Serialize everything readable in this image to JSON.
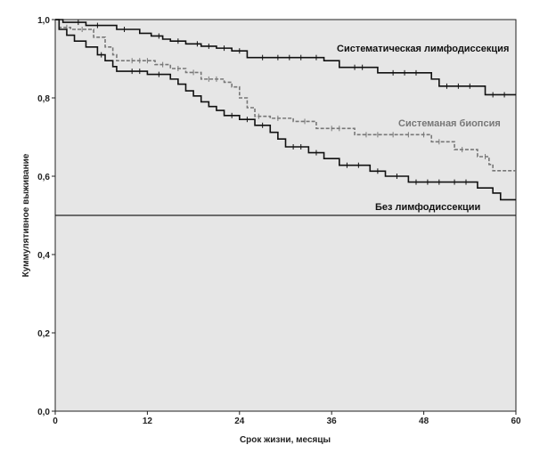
{
  "chart_data": {
    "type": "line",
    "subtype": "kaplan-meier-step",
    "xlabel": "Срок жизни, месяцы",
    "ylabel": "Куммулятивное выживание",
    "xlim": [
      0,
      60
    ],
    "ylim": [
      0,
      1.0
    ],
    "x_ticks": [
      0,
      12,
      24,
      36,
      48,
      60
    ],
    "x_tick_labels": [
      "0",
      "12",
      "24",
      "36",
      "48",
      "60"
    ],
    "y_ticks": [
      0,
      0.2,
      0.4,
      0.6,
      0.8,
      1.0
    ],
    "y_tick_labels": [
      "0,0",
      "0,2",
      "0,4",
      "0,6",
      "0,8",
      "1,0"
    ],
    "grid": false,
    "reference_line": {
      "y": 0.5,
      "color": "#222222"
    },
    "plot_background": "#e6e6e6",
    "series": [
      {
        "name": "Систематическая лимфодиссекция",
        "label_text": "Систематическая лимфодиссекция",
        "color": "#111111",
        "dash": "solid",
        "steps": [
          [
            0,
            1.0
          ],
          [
            1,
            0.993
          ],
          [
            4,
            0.985
          ],
          [
            8,
            0.975
          ],
          [
            11,
            0.965
          ],
          [
            12.5,
            0.958
          ],
          [
            14,
            0.95
          ],
          [
            15,
            0.945
          ],
          [
            17,
            0.938
          ],
          [
            19,
            0.932
          ],
          [
            21,
            0.927
          ],
          [
            23,
            0.92
          ],
          [
            25,
            0.903
          ],
          [
            35,
            0.895
          ],
          [
            37,
            0.878
          ],
          [
            42,
            0.864
          ],
          [
            49,
            0.848
          ],
          [
            50,
            0.83
          ],
          [
            56,
            0.808
          ],
          [
            60,
            0.808
          ]
        ],
        "censored": [
          3,
          5.5,
          9,
          13.5,
          16,
          18.5,
          20,
          22,
          24,
          27,
          29,
          30.5,
          32,
          34,
          39,
          40,
          44,
          45.5,
          47,
          51,
          52.5,
          54,
          57,
          58.5
        ]
      },
      {
        "name": "Системаная биопсия",
        "label_text": "Системаная биопсия",
        "color": "#777777",
        "dash": "dashed",
        "steps": [
          [
            0,
            1.0
          ],
          [
            0.5,
            0.98
          ],
          [
            2,
            0.975
          ],
          [
            5,
            0.955
          ],
          [
            6.5,
            0.93
          ],
          [
            7.5,
            0.91
          ],
          [
            8,
            0.895
          ],
          [
            13,
            0.885
          ],
          [
            15,
            0.875
          ],
          [
            17,
            0.865
          ],
          [
            19,
            0.848
          ],
          [
            22,
            0.84
          ],
          [
            23,
            0.828
          ],
          [
            24,
            0.8
          ],
          [
            25,
            0.775
          ],
          [
            26,
            0.753
          ],
          [
            28,
            0.748
          ],
          [
            31,
            0.74
          ],
          [
            34,
            0.722
          ],
          [
            39,
            0.706
          ],
          [
            49,
            0.688
          ],
          [
            52,
            0.668
          ],
          [
            55,
            0.65
          ],
          [
            56.5,
            0.63
          ],
          [
            57,
            0.614
          ],
          [
            60,
            0.614
          ]
        ],
        "censored": [
          1.5,
          3.5,
          10,
          11,
          12,
          14,
          16,
          18,
          20,
          21,
          26.5,
          29,
          32.5,
          36,
          37,
          40.5,
          42,
          44,
          46,
          48,
          50,
          53,
          56
        ]
      },
      {
        "name": "Без лимфодиссекции",
        "label_text": "Без лимфодиссекции",
        "color": "#111111",
        "dash": "solid",
        "steps": [
          [
            0,
            1.0
          ],
          [
            0.5,
            0.975
          ],
          [
            1.5,
            0.96
          ],
          [
            2.5,
            0.945
          ],
          [
            4,
            0.93
          ],
          [
            5.5,
            0.91
          ],
          [
            6.5,
            0.895
          ],
          [
            7.5,
            0.88
          ],
          [
            8,
            0.868
          ],
          [
            12,
            0.86
          ],
          [
            15,
            0.848
          ],
          [
            16,
            0.835
          ],
          [
            17,
            0.818
          ],
          [
            18,
            0.805
          ],
          [
            19,
            0.79
          ],
          [
            20,
            0.778
          ],
          [
            21,
            0.768
          ],
          [
            22,
            0.755
          ],
          [
            24,
            0.745
          ],
          [
            26,
            0.73
          ],
          [
            28,
            0.712
          ],
          [
            29,
            0.695
          ],
          [
            30,
            0.675
          ],
          [
            33,
            0.66
          ],
          [
            35,
            0.645
          ],
          [
            37,
            0.628
          ],
          [
            41,
            0.613
          ],
          [
            43,
            0.6
          ],
          [
            46,
            0.585
          ],
          [
            55,
            0.57
          ],
          [
            57,
            0.557
          ],
          [
            58,
            0.54
          ],
          [
            60,
            0.54
          ]
        ],
        "censored": [
          6,
          10,
          11,
          13.5,
          23,
          25,
          27,
          31,
          32,
          34,
          38,
          39.5,
          42,
          44.5,
          47,
          48.5,
          50,
          52,
          53.5
        ]
      }
    ]
  }
}
